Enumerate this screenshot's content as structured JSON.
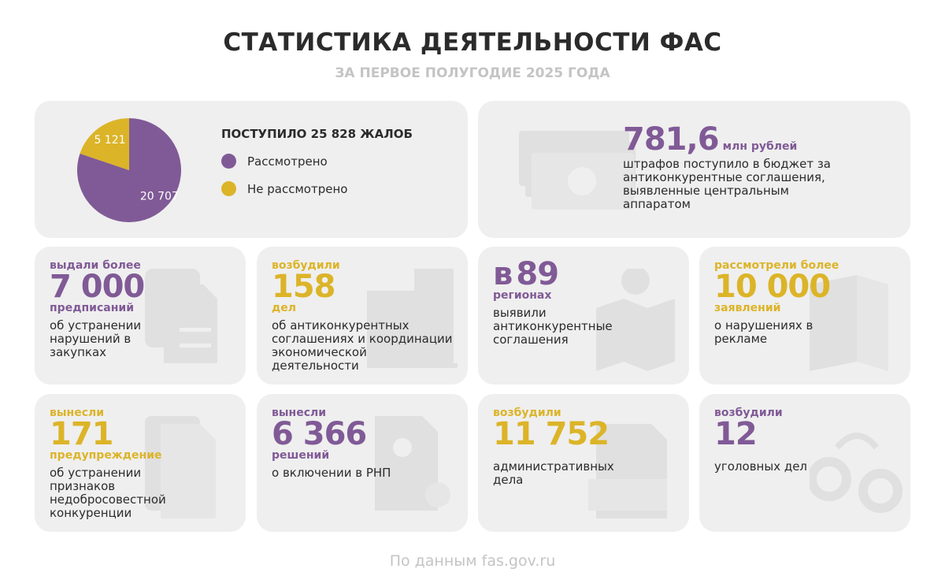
{
  "header": {
    "title": "СТАТИСТИКА ДЕЯТЕЛЬНОСТИ ФАС",
    "subtitle": "ЗА ПЕРВОЕ ПОЛУГОДИЕ 2025 ГОДА"
  },
  "colors": {
    "purple": "#805a96",
    "yellow": "#dcb428",
    "card": "#efefef",
    "icon": "#e0e0e0"
  },
  "chart_data": {
    "type": "pie",
    "title": "ПОСТУПИЛО 25 828 ЖАЛОБ",
    "categories": [
      "Рассмотрено",
      "Не рассмотрено"
    ],
    "values": [
      20707,
      5121
    ],
    "value_labels": [
      "20 707",
      "5 121"
    ],
    "colors": [
      "#805a96",
      "#dcb428"
    ],
    "legend": "right"
  },
  "fines": {
    "value": "781,6",
    "unit": "млн рублей",
    "desc": "штрафов поступило в бюджет за антиконкурентные соглашения, выявленные центральным аппаратом",
    "icon": "money-icon"
  },
  "cards": [
    {
      "pre": "выдали более",
      "num": "7 000",
      "post": "предписаний",
      "desc": "об устранении нарушений в закупках",
      "color": "purple",
      "icon": "document-gavel-icon"
    },
    {
      "pre": "возбудили",
      "num": "158",
      "post": "дел",
      "desc": "об антиконкурентных соглашениях и координации экономической деятельности",
      "color": "yellow",
      "icon": "buildings-icon"
    },
    {
      "pre": "в",
      "num": "89",
      "post": "регионах",
      "desc": "выявили антиконкурентные соглашения",
      "color": "purple",
      "icon": "map-pin-icon"
    },
    {
      "pre": "рассмотрели более",
      "num": "10 000",
      "post": "заявлений",
      "desc": "о нарушениях в рекламе",
      "color": "yellow",
      "icon": "megaphone-icon"
    },
    {
      "pre": "вынесли",
      "num": "171",
      "post": "предупреждение",
      "desc": "об устранении признаков недобросовестной конкуренции",
      "color": "yellow",
      "icon": "warning-document-icon"
    },
    {
      "pre": "вынесли",
      "num": "6 366",
      "post": "решений",
      "desc": "о включении в РНП",
      "color": "purple",
      "icon": "user-document-icon"
    },
    {
      "pre": "возбудили",
      "num": "11 752",
      "post": "",
      "desc": "административных дела",
      "color": "yellow",
      "icon": "document-pen-icon"
    },
    {
      "pre": "возбудили",
      "num": "12",
      "post": "",
      "desc": "уголовных дел",
      "color": "purple",
      "icon": "handcuffs-icon"
    }
  ],
  "footer": "По данным fas.gov.ru"
}
